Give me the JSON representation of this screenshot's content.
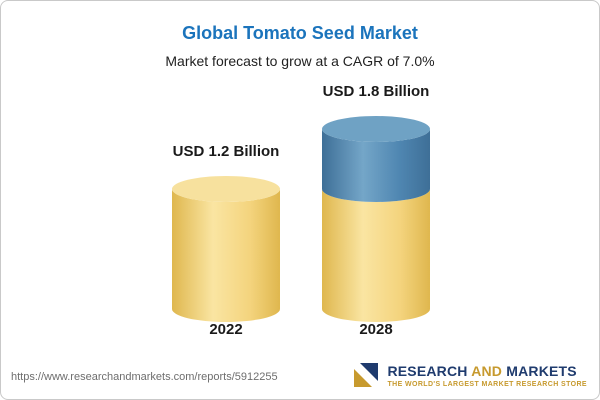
{
  "header": {
    "title": "Global Tomato Seed Market",
    "subtitle": "Market forecast to grow at a CAGR of 7.0%"
  },
  "chart_data": {
    "type": "bar",
    "style": "3d-cylinder",
    "title": "Global Tomato Seed Market",
    "subtitle": "Market forecast to grow at a CAGR of 7.0%",
    "unit": "USD Billion",
    "categories": [
      "2022",
      "2028"
    ],
    "values": [
      1.2,
      1.8
    ],
    "value_labels": [
      "USD 1.2 Billion",
      "USD 1.8 Billion"
    ],
    "base_value": 1.2,
    "cagr_percent": 7.0,
    "ylim": [
      0,
      2
    ],
    "grid": false,
    "legend": "none",
    "colors": {
      "base_light": "#FAE5A2",
      "base_mid": "#F4D47E",
      "base_dark": "#DFB74E",
      "base_top": "#F7E19E",
      "growth_light": "#74A6C8",
      "growth_mid": "#4F86B1",
      "growth_dark": "#3E6F97",
      "growth_top": "#6FA2C4"
    }
  },
  "footer": {
    "url": "https://www.researchandmarkets.com/reports/5912255",
    "logo_research": "RESEARCH",
    "logo_and": "AND",
    "logo_markets": "MARKETS",
    "logo_tagline": "THE WORLD'S LARGEST MARKET RESEARCH STORE"
  },
  "colors": {
    "title": "#1B74BC",
    "subtitle": "#222222",
    "label": "#1A1A1A",
    "url": "#6E6E6E",
    "brand_navy": "#1F3B6E",
    "brand_gold": "#C79A2E",
    "card_border": "#C9C9C9"
  }
}
